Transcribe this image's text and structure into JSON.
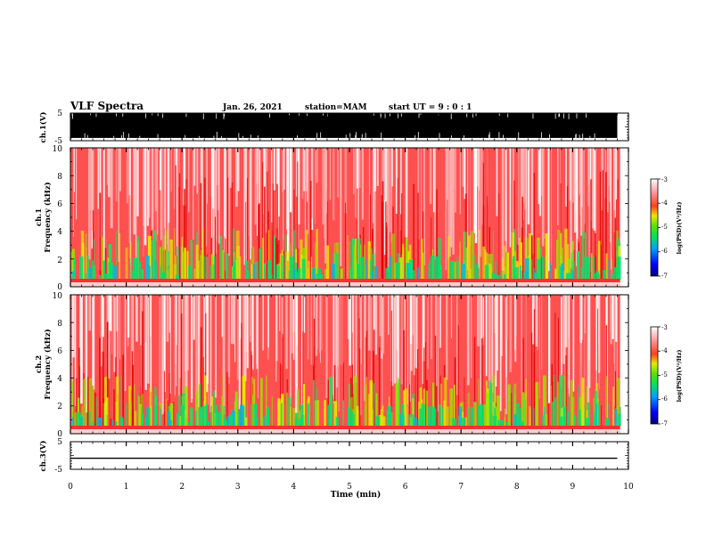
{
  "header": {
    "title": "VLF Spectra",
    "date": "Jan. 26, 2021",
    "station": "station=MAM",
    "start": "start  UT  =   9  :  0   :  1"
  },
  "colors": {
    "spectrogram": [
      "#0000c8",
      "#00a0ff",
      "#00e060",
      "#80e000",
      "#e8e800",
      "#ff3020",
      "#ffffff"
    ],
    "trace": "#000000"
  },
  "chart_data": [
    {
      "type": "line",
      "name": "ch1-waveform",
      "ylabel": "ch.1(V)",
      "ylim": [
        -5,
        5
      ],
      "yticks": [
        "5",
        "-5"
      ],
      "description_values": "saturated noise fills roughly -4 to 5 V across 0-9.8 min",
      "x": [
        0,
        9.8
      ],
      "band": [
        -4,
        5
      ]
    },
    {
      "type": "heatmap",
      "name": "ch1-spectrogram",
      "ylabel_line1": "ch.1",
      "ylabel_line2": "Frequency  (kHz)",
      "ylim": [
        0,
        10
      ],
      "yticks": [
        "0",
        "2",
        "4",
        "6",
        "8",
        "10"
      ],
      "xlim": [
        0,
        10
      ],
      "colorbar": {
        "label": "log(PSD)(V²/Hz)",
        "range": [
          -7,
          -3
        ],
        "ticks": [
          "-3",
          "-4",
          "-5",
          "-6",
          "-7"
        ]
      }
    },
    {
      "type": "heatmap",
      "name": "ch2-spectrogram",
      "ylabel_line1": "ch.2",
      "ylabel_line2": "Frequency  (kHz)",
      "ylim": [
        0,
        10
      ],
      "yticks": [
        "0",
        "2",
        "4",
        "6",
        "8",
        "10"
      ],
      "xlim": [
        0,
        10
      ],
      "colorbar": {
        "label": "log(PSD)(V²/Hz)",
        "range": [
          -7,
          -3
        ],
        "ticks": [
          "-3",
          "-4",
          "-5",
          "-6",
          "-7"
        ]
      }
    },
    {
      "type": "line",
      "name": "ch3-waveform",
      "ylabel": "ch.3(V)",
      "ylim": [
        -5,
        5
      ],
      "yticks": [
        "5",
        "-5"
      ],
      "x": [
        0,
        9.8
      ],
      "y": [
        -1,
        -1
      ]
    }
  ],
  "xaxis": {
    "label": "Time  (min)",
    "ticks": [
      "0",
      "1",
      "2",
      "3",
      "4",
      "5",
      "6",
      "7",
      "8",
      "9",
      "10"
    ]
  }
}
